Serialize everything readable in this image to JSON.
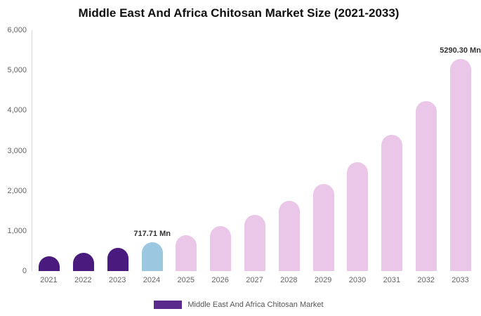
{
  "title": "Middle East And Africa Chitosan Market Size (2021-2033)",
  "legend": {
    "label": "Middle East And Africa Chitosan Market"
  },
  "colors": {
    "historical": "#4A1A7E",
    "base_year": "#9CC7E0",
    "forecast": "#EAC7E9",
    "legend_swatch": "#5A2A8C",
    "axis_line": "#D9D9D9",
    "tick_text": "#666666",
    "annotation_text": "#333333",
    "title_text": "#111111"
  },
  "chart_data": {
    "type": "bar",
    "title": "Middle East And Africa Chitosan Market Size (2021-2033)",
    "unit": "Mn",
    "categories": [
      "2021",
      "2022",
      "2023",
      "2024",
      "2025",
      "2026",
      "2027",
      "2028",
      "2029",
      "2030",
      "2031",
      "2032",
      "2033"
    ],
    "values": [
      368.8,
      460.4,
      574.9,
      717.71,
      896.1,
      1118.8,
      1396.8,
      1743.9,
      2177.3,
      2718.5,
      3394.1,
      4237.6,
      5290.3
    ],
    "ylim": [
      0,
      6000
    ],
    "ytick_labels": [
      "0",
      "1,000",
      "2,000",
      "3,000",
      "4,000",
      "5,000",
      "6,000"
    ],
    "grid": false,
    "legend_position": "bottom",
    "annotations": [
      {
        "category": "2024",
        "index": 3,
        "text": "717.71 Mn"
      },
      {
        "category": "2033",
        "index": 12,
        "text": "5290.30 Mn"
      }
    ],
    "segment_colors": {
      "historical_indices": [
        0,
        1,
        2
      ],
      "base_year_index": 3,
      "forecast_from_index": 4
    }
  }
}
